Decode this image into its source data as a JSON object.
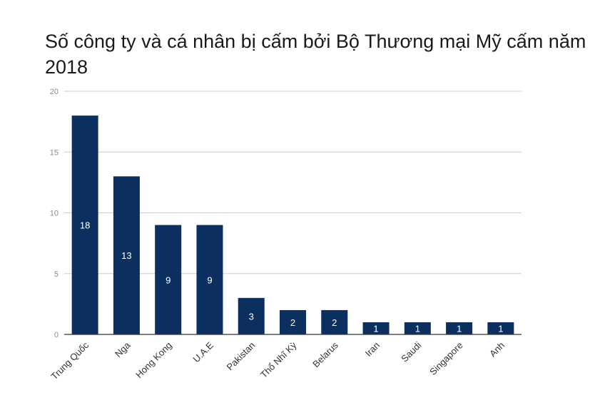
{
  "chart_data": {
    "type": "bar",
    "title": "Số công ty và cá nhân bị cấm bởi Bộ Thương mại Mỹ cấm năm 2018",
    "xlabel": "",
    "ylabel": "",
    "categories": [
      "Trung Quốc",
      "Nga",
      "Hong Kong",
      "U.A.E",
      "Pakistan",
      "Thổ Nhĩ Kỳ",
      "Belarus",
      "Iran",
      "Saudi",
      "Singapore",
      "Anh"
    ],
    "values": [
      18,
      13,
      9,
      9,
      3,
      2,
      2,
      1,
      1,
      1,
      1
    ],
    "ylim": [
      0,
      20
    ],
    "yticks": [
      0,
      5,
      10,
      15,
      20
    ],
    "grid": true,
    "legend": "none",
    "bar_color": "#0b305f",
    "grid_color": "#cccccc",
    "axis_color": "#333333"
  }
}
